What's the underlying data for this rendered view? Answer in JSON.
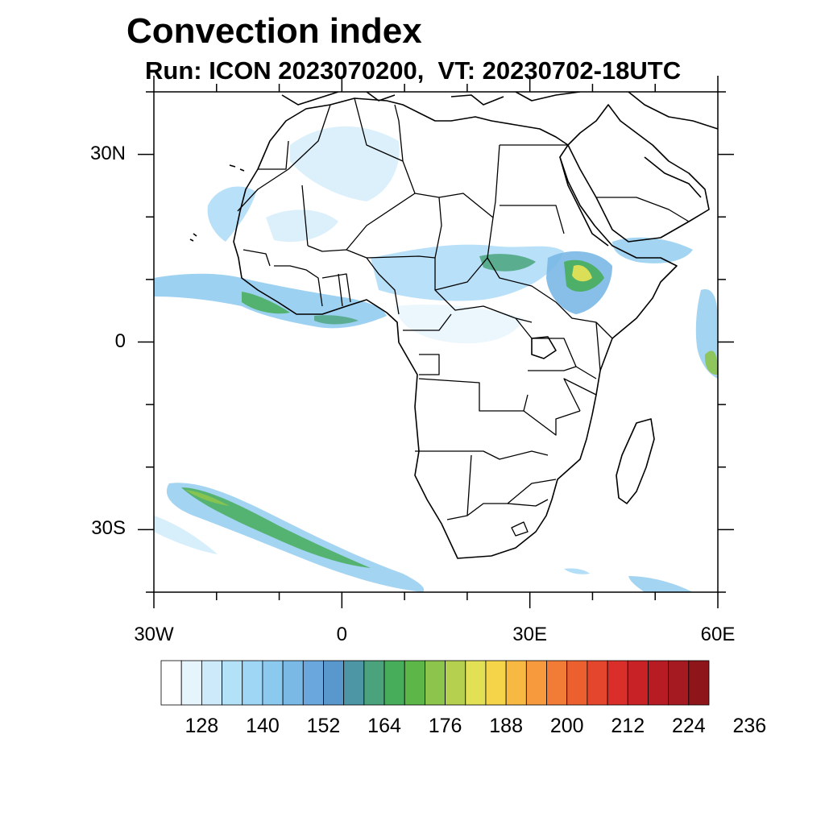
{
  "header": {
    "title": "Convection index",
    "subtitle": "Run: ICON 2023070200,  VT: 20230702-18UTC"
  },
  "map": {
    "lon_range": [
      -30,
      60
    ],
    "lat_range": [
      -40,
      40
    ],
    "y_ticks": [
      {
        "lat": 30,
        "label": "30N"
      },
      {
        "lat": 0,
        "label": "0"
      },
      {
        "lat": -30,
        "label": "30S"
      }
    ],
    "x_ticks": [
      {
        "lon": -30,
        "label": "30W"
      },
      {
        "lon": 0,
        "label": "0"
      },
      {
        "lon": 30,
        "label": "30E"
      },
      {
        "lon": 60,
        "label": "60E"
      }
    ]
  },
  "colorbar": {
    "labels": [
      "128",
      "140",
      "152",
      "164",
      "176",
      "188",
      "200",
      "212",
      "224",
      "236"
    ],
    "colors": [
      "#ffffff",
      "#e6f4fc",
      "#cdeafa",
      "#b3e1f7",
      "#a0d6f5",
      "#8cc9ef",
      "#7ab8e6",
      "#6aa7dc",
      "#5898cc",
      "#4d96a6",
      "#4aa37c",
      "#48ad5a",
      "#5cb748",
      "#8cc44c",
      "#b5d04e",
      "#e2e156",
      "#f6d44a",
      "#f8b943",
      "#f7993d",
      "#f27c36",
      "#ec6030",
      "#e4462d",
      "#d92e2a",
      "#c92226",
      "#b71b23",
      "#a41a20",
      "#8e161b"
    ]
  }
}
